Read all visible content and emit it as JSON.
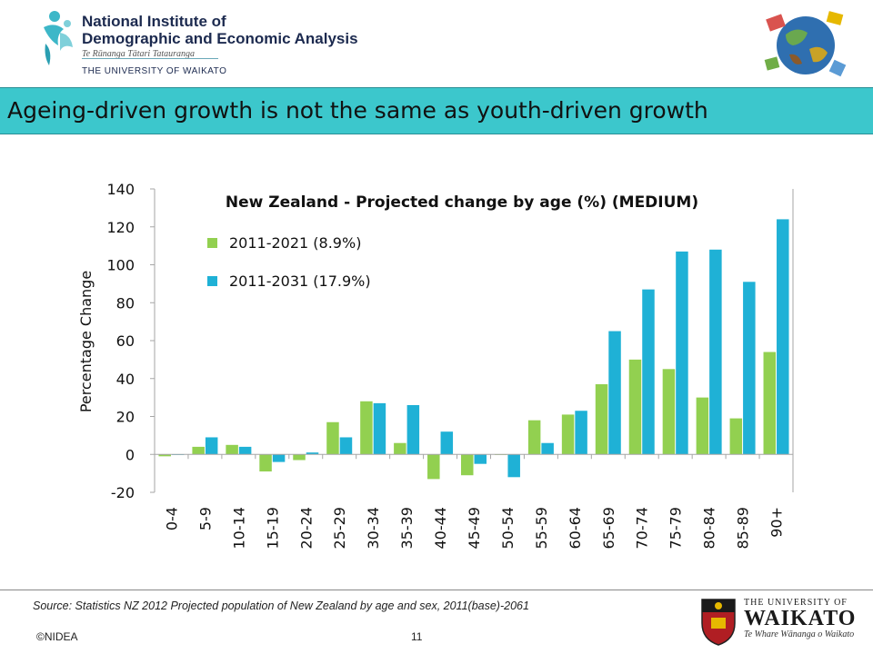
{
  "header": {
    "org_line1": "National Institute of",
    "org_line2": "Demographic and Economic Analysis",
    "org_maori": "Te Rūnanga Tātari Tatauranga",
    "org_university": "THE UNIVERSITY OF WAIKATO"
  },
  "slide_title": "Ageing-driven growth is not the same as youth-driven growth",
  "colors": {
    "series1": "#92d050",
    "series2": "#1fb1d6",
    "title_bar": "#3cc7cc"
  },
  "chart_data": {
    "type": "bar",
    "title": "New Zealand - Projected change by age (%) (MEDIUM)",
    "ylabel": "Percentage Change",
    "xlabel": "",
    "ylim": [
      -20,
      140
    ],
    "yticks": [
      -20,
      0,
      20,
      40,
      60,
      80,
      100,
      120,
      140
    ],
    "categories": [
      "0-4",
      "5-9",
      "10-14",
      "15-19",
      "20-24",
      "25-29",
      "30-34",
      "35-39",
      "40-44",
      "45-49",
      "50-54",
      "55-59",
      "60-64",
      "65-69",
      "70-74",
      "75-79",
      "80-84",
      "85-89",
      "90+"
    ],
    "series": [
      {
        "name": "2011-2021 (8.9%)",
        "color": "#92d050",
        "values": [
          -1,
          4,
          5,
          -9,
          -3,
          17,
          28,
          6,
          -13,
          -11,
          0,
          18,
          21,
          37,
          50,
          45,
          30,
          19,
          54
        ]
      },
      {
        "name": "2011-2031 (17.9%)",
        "color": "#1fb1d6",
        "values": [
          0,
          9,
          4,
          -4,
          1,
          9,
          27,
          26,
          12,
          -5,
          -12,
          6,
          23,
          65,
          87,
          107,
          108,
          91,
          124
        ]
      }
    ],
    "legend_position": "top-left",
    "grid": false
  },
  "footer": {
    "source": "Source: Statistics NZ 2012 Projected population of New Zealand by age and sex, 2011(base)-2061",
    "copyright": "©NIDEA",
    "page_number": "11",
    "university_top": "THE UNIVERSITY OF",
    "university_name": "WAIKATO",
    "university_maori": "Te Whare Wānanga o Waikato"
  }
}
